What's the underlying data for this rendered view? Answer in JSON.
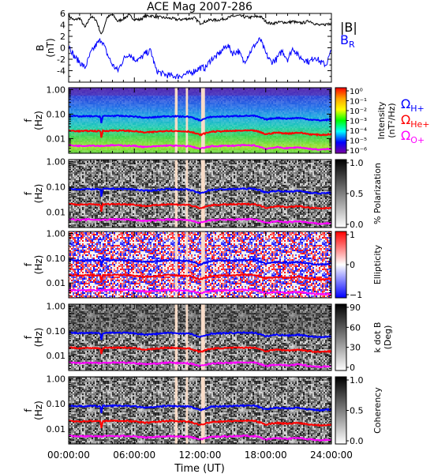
{
  "chart_data": {
    "type": "line",
    "title": "ACE Mag 2007-286",
    "x_axis": {
      "label": "Time (UT)",
      "range_hours": [
        0,
        24
      ],
      "tick_labels": [
        "00:00:00",
        "06:00:00",
        "12:00:00",
        "18:00:00",
        "24:00:00"
      ]
    },
    "data_gaps_hours": [
      [
        9.7,
        9.95
      ],
      [
        10.7,
        10.9
      ],
      [
        12.1,
        12.45
      ]
    ],
    "field_panel": {
      "ylabel": "B",
      "yunit": "(nT)",
      "ylim": [
        -6,
        6
      ],
      "yticks": [
        "6",
        "4",
        "2",
        "0",
        "-2",
        "-4"
      ],
      "legend": [
        {
          "name": "|B|",
          "color": "#000000"
        },
        {
          "name": "B",
          "sub": "R",
          "color": "#0000ff"
        }
      ],
      "series": [
        {
          "name": "|B|",
          "color": "#000000",
          "t": [
            0,
            0.5,
            1,
            1.5,
            2,
            2.5,
            3,
            3.5,
            4,
            4.5,
            5,
            5.5,
            6,
            6.5,
            7,
            7.5,
            8,
            8.5,
            9,
            9.5,
            10,
            10.5,
            11,
            11.5,
            12,
            12.5,
            13,
            13.5,
            14,
            14.5,
            15,
            15.5,
            16,
            16.5,
            17,
            17.5,
            18,
            18.5,
            19,
            19.5,
            20,
            20.5,
            21,
            21.5,
            22,
            22.5,
            23,
            23.5,
            24
          ],
          "values": [
            5.6,
            4.8,
            5.2,
            3.5,
            5.5,
            4.9,
            2.2,
            5.3,
            5.8,
            4.6,
            5.1,
            5.7,
            5.0,
            4.9,
            5.5,
            5.6,
            5.4,
            5.3,
            5.2,
            5.1,
            4.9,
            5.0,
            5.1,
            5.2,
            4.3,
            4.6,
            4.9,
            4.8,
            5.0,
            5.2,
            5.5,
            5.6,
            5.4,
            5.3,
            5.4,
            5.5,
            4.6,
            4.2,
            4.4,
            4.5,
            4.4,
            4.6,
            4.3,
            4.4,
            4.7,
            4.2,
            3.9,
            4.1,
            4.5
          ]
        },
        {
          "name": "B_R",
          "color": "#0000ff",
          "t": [
            0,
            0.5,
            1,
            1.5,
            2,
            2.5,
            3,
            3.5,
            4,
            4.5,
            5,
            5.5,
            6,
            6.5,
            7,
            7.5,
            8,
            8.5,
            9,
            9.5,
            10,
            10.5,
            11,
            11.5,
            12,
            12.5,
            13,
            13.5,
            14,
            14.5,
            15,
            15.5,
            16,
            16.5,
            17,
            17.5,
            18,
            18.5,
            19,
            19.5,
            20,
            20.5,
            21,
            21.5,
            22,
            22.5,
            23,
            23.5,
            24
          ],
          "values": [
            0.5,
            -1.5,
            -2.5,
            -3.5,
            -1.0,
            0.5,
            1.5,
            -1.0,
            -3.0,
            -4.0,
            -2.0,
            -1.0,
            -2.0,
            -2.0,
            -1.0,
            -0.5,
            -4.0,
            -4.5,
            -4.8,
            -4.9,
            -5.0,
            -4.7,
            -4.5,
            -4.0,
            -3.5,
            -3.5,
            -2.0,
            -1.5,
            -0.5,
            0.5,
            -1.0,
            -0.5,
            -2.5,
            -1.0,
            0.5,
            1.5,
            -1.0,
            -2.5,
            -2.0,
            -0.5,
            -2.0,
            0.0,
            -1.5,
            -2.0,
            -2.5,
            -1.5,
            -2.5,
            -3.0,
            -0.5
          ]
        }
      ]
    },
    "spectral_panels": [
      {
        "id": "intensity",
        "ylabel": "f",
        "yunit": "(Hz)",
        "colorbar_label": "Intensity",
        "colorbar_unit": "(nT²/Hz)",
        "colorbar_ticks": [
          "10⁰",
          "10⁻¹",
          "10⁻²",
          "10⁻³",
          "10⁻⁴",
          "10⁻⁵",
          "10⁻⁶"
        ],
        "colormap": "rainbow",
        "legend": [
          {
            "name": "Ω",
            "sub": "H+",
            "color": "#0000ff"
          },
          {
            "name": "Ω",
            "sub": "He+",
            "color": "#ff0000"
          },
          {
            "name": "Ω",
            "sub": "O+",
            "color": "#ff00ff"
          }
        ]
      },
      {
        "id": "polarization",
        "ylabel": "f",
        "yunit": "(Hz)",
        "colorbar_label": "% Polarization",
        "colorbar_unit": "",
        "colorbar_ticks": [
          "1.0",
          "0.5",
          "0.0"
        ],
        "colormap": "gray"
      },
      {
        "id": "ellipticity",
        "ylabel": "f",
        "yunit": "(Hz)",
        "colorbar_label": "Ellipticity",
        "colorbar_unit": "",
        "colorbar_ticks": [
          "1",
          "0",
          "−1"
        ],
        "colormap": "bluewhitered"
      },
      {
        "id": "kdotb",
        "ylabel": "f",
        "yunit": "(Hz)",
        "colorbar_label": "k dot B",
        "colorbar_unit": "(Deg)",
        "colorbar_ticks": [
          "90",
          "60",
          "30",
          "0"
        ],
        "colormap": "gray"
      },
      {
        "id": "coherency",
        "ylabel": "f",
        "yunit": "(Hz)",
        "colorbar_label": "Coherency",
        "colorbar_unit": "",
        "colorbar_ticks": [
          "1.0",
          "0.5",
          "0.0"
        ],
        "colormap": "gray"
      }
    ],
    "spectral_yaxis": {
      "scale": "log",
      "ylim": [
        0.0025,
        1.2
      ],
      "yticks": [
        "1.00",
        "0.10",
        "0.01"
      ]
    },
    "gyrofrequency_lines": [
      {
        "name": "Ω_H+",
        "color": "#0000ff",
        "t": [
          0,
          1,
          2,
          2.9,
          3,
          3.1,
          4,
          5,
          6,
          7,
          8,
          9,
          10,
          11,
          12,
          13,
          14,
          15,
          16,
          17,
          18,
          19,
          20,
          21,
          22,
          23,
          24
        ],
        "values": [
          0.085,
          0.08,
          0.082,
          0.08,
          0.035,
          0.082,
          0.085,
          0.083,
          0.08,
          0.07,
          0.075,
          0.083,
          0.08,
          0.078,
          0.055,
          0.077,
          0.08,
          0.082,
          0.085,
          0.084,
          0.06,
          0.07,
          0.065,
          0.07,
          0.06,
          0.055,
          0.06
        ]
      },
      {
        "name": "Ω_He+",
        "color": "#ff0000",
        "t": [
          0,
          1,
          2,
          2.9,
          3,
          3.1,
          4,
          5,
          6,
          7,
          8,
          9,
          10,
          11,
          12,
          13,
          14,
          15,
          16,
          17,
          18,
          19,
          20,
          21,
          22,
          23,
          24
        ],
        "values": [
          0.021,
          0.02,
          0.0205,
          0.02,
          0.009,
          0.0205,
          0.021,
          0.021,
          0.02,
          0.0175,
          0.019,
          0.021,
          0.02,
          0.0195,
          0.014,
          0.019,
          0.02,
          0.0205,
          0.021,
          0.021,
          0.015,
          0.0175,
          0.016,
          0.0175,
          0.015,
          0.014,
          0.015
        ]
      },
      {
        "name": "Ω_O+",
        "color": "#ff00ff",
        "t": [
          0,
          1,
          2,
          3,
          4,
          5,
          6,
          7,
          8,
          9,
          10,
          11,
          12,
          13,
          14,
          15,
          16,
          17,
          18,
          19,
          20,
          21,
          22,
          23,
          24
        ],
        "values": [
          0.0053,
          0.005,
          0.0052,
          0.005,
          0.0053,
          0.0052,
          0.005,
          0.0045,
          0.0048,
          0.0052,
          0.005,
          0.0049,
          0.0038,
          0.0048,
          0.005,
          0.0051,
          0.0053,
          0.0052,
          0.0038,
          0.0044,
          0.004,
          0.0044,
          0.0038,
          0.0035,
          0.0038
        ]
      }
    ]
  }
}
